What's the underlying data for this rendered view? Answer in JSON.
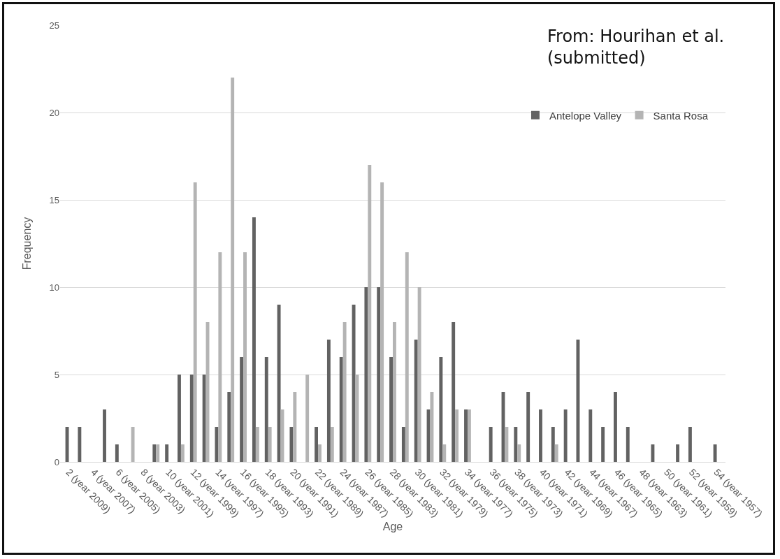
{
  "chart_data": {
    "type": "bar",
    "xlabel": "Age",
    "ylabel": "Frequency",
    "categories": [
      "2 (year 2009)",
      null,
      "4 (year 2007)",
      null,
      "6 (year 2005)",
      null,
      "8 (year 2003)",
      null,
      "10 (year 2001)",
      null,
      "12 (year 1999)",
      null,
      "14 (year 1997)",
      null,
      "16 (year 1995)",
      null,
      "18 (year 1993)",
      null,
      "20 (year 1991)",
      null,
      "22 (year 1989)",
      null,
      "24 (year 1987)",
      null,
      "26 (year 1985)",
      null,
      "28 (year 1983)",
      null,
      "30 (year 1981)",
      null,
      "32 (year 1979)",
      null,
      "34 (year 1977)",
      null,
      "36 (year 1975)",
      null,
      "38 (year 1973)",
      null,
      "40 (year 1971)",
      null,
      "42 (year 1969)",
      null,
      "44 (year 1967)",
      null,
      "46 (year 1965)",
      null,
      "48 (year 1963)",
      null,
      "50 (year 1961)",
      null,
      "52 (year 1959)",
      null,
      "54 (year 1957)"
    ],
    "series": [
      {
        "name": "Antelope Valley",
        "color": "#626262",
        "values": [
          2,
          2,
          0,
          3,
          1,
          0,
          0,
          1,
          1,
          5,
          5,
          5,
          2,
          4,
          6,
          14,
          6,
          9,
          2,
          0,
          2,
          7,
          6,
          9,
          10,
          10,
          6,
          2,
          7,
          3,
          6,
          8,
          3,
          0,
          2,
          4,
          2,
          4,
          3,
          2,
          3,
          7,
          3,
          2,
          4,
          2,
          0,
          1,
          0,
          1,
          2,
          0,
          1
        ]
      },
      {
        "name": "Santa Rosa",
        "color": "#b4b4b4",
        "values": [
          0,
          0,
          0,
          0,
          0,
          2,
          0,
          1,
          0,
          1,
          16,
          8,
          12,
          22,
          12,
          2,
          2,
          3,
          4,
          5,
          1,
          2,
          8,
          5,
          17,
          16,
          8,
          12,
          10,
          4,
          1,
          3,
          3,
          0,
          0,
          2,
          1,
          0,
          0,
          1,
          0,
          0,
          0,
          0,
          0,
          0,
          0,
          0,
          0,
          0,
          0,
          0,
          0
        ]
      }
    ],
    "ylim": [
      0,
      25
    ],
    "yticks": [
      0,
      5,
      10,
      15,
      20,
      25
    ],
    "grid": "y",
    "legend": "top right",
    "annotations": [
      "From: Hourihan et al.\n(submitted)"
    ]
  }
}
